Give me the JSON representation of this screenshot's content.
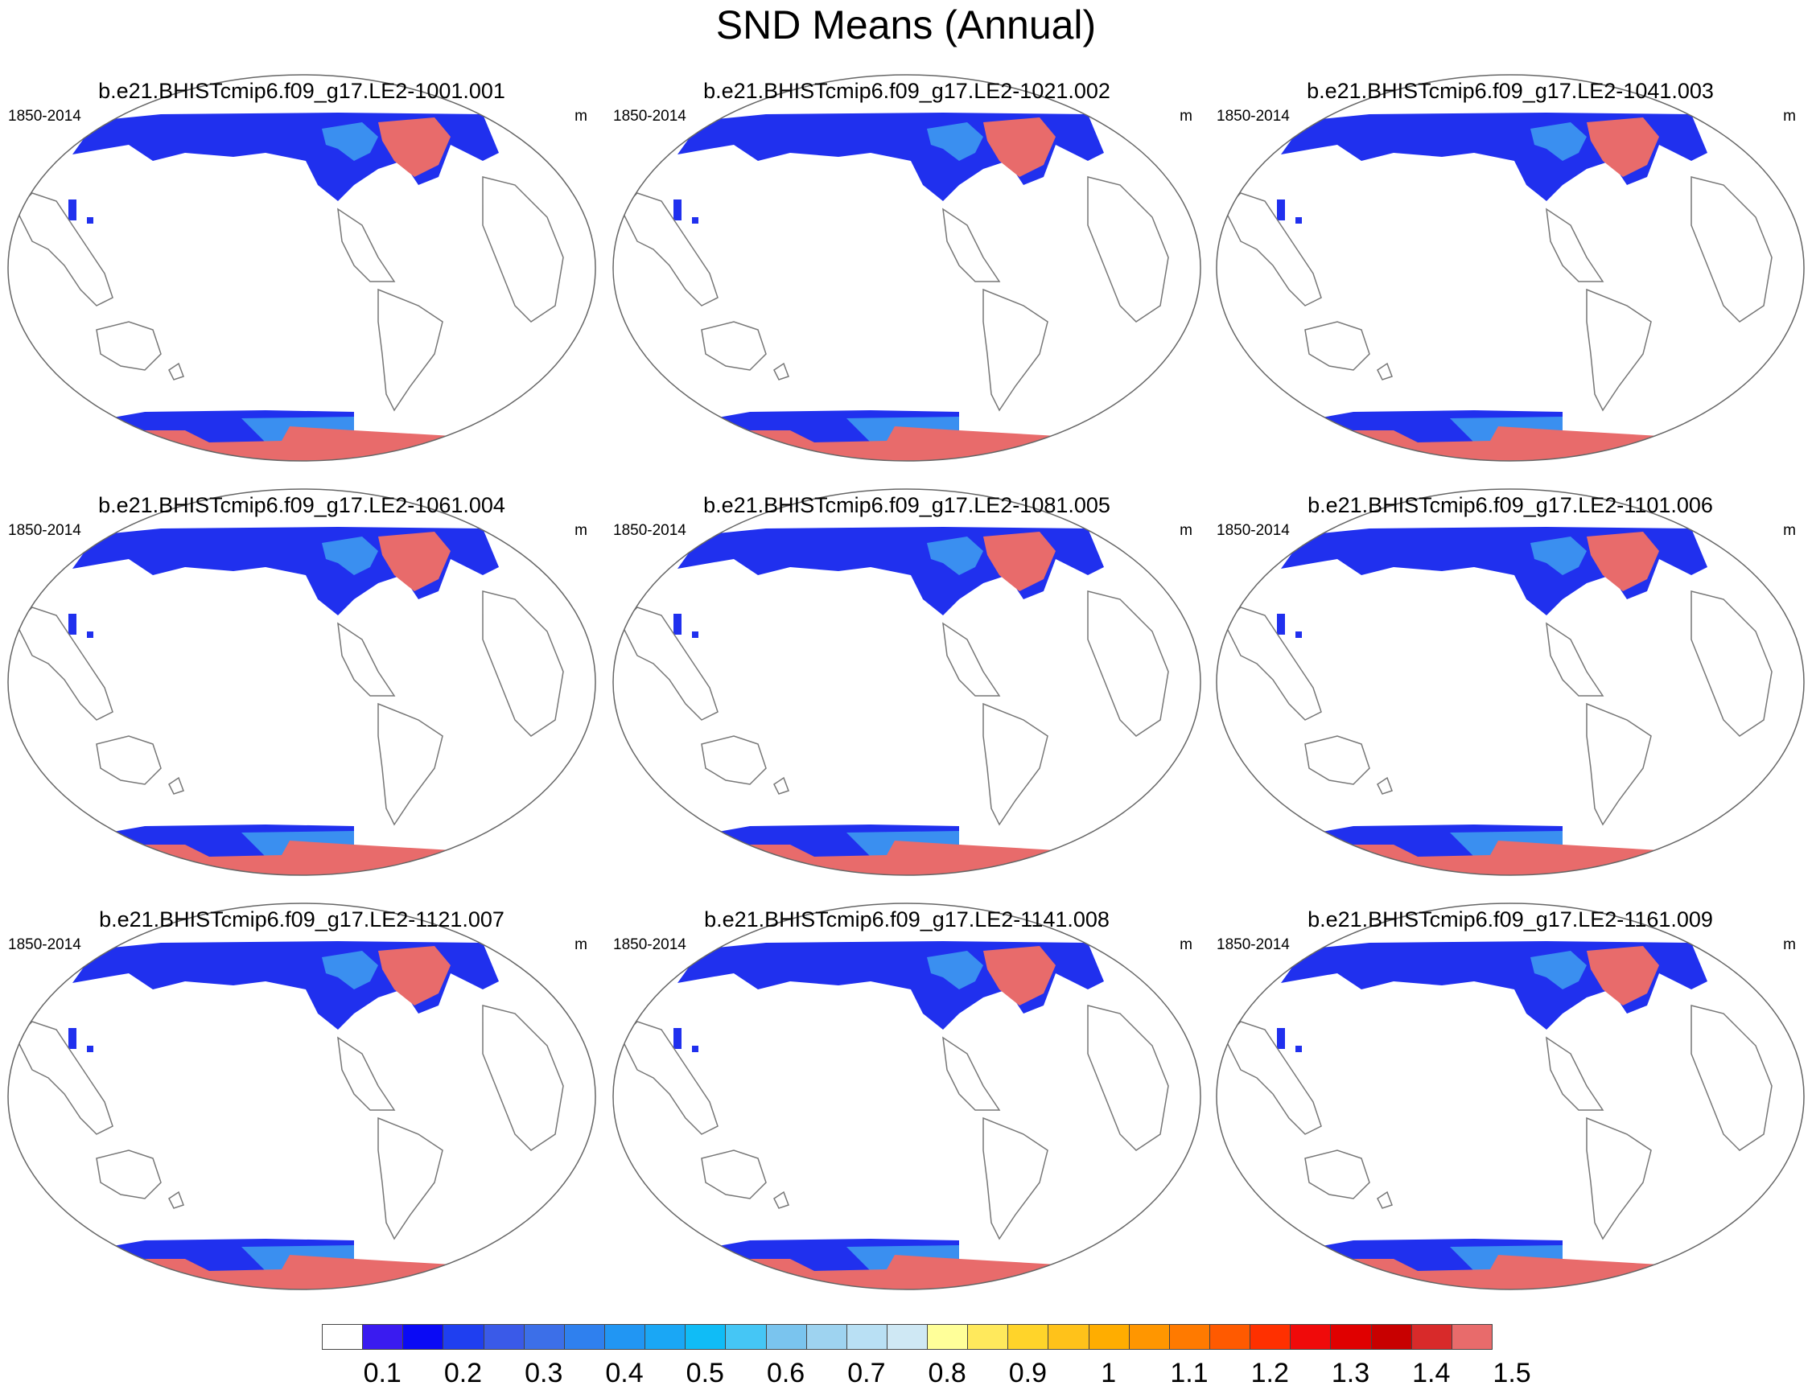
{
  "title": "SND Means (Annual)",
  "panels": [
    {
      "title": "b.e21.BHISTcmip6.f09_g17.LE2-1001.001",
      "period": "1850-2014",
      "units": "m"
    },
    {
      "title": "b.e21.BHISTcmip6.f09_g17.LE2-1021.002",
      "period": "1850-2014",
      "units": "m"
    },
    {
      "title": "b.e21.BHISTcmip6.f09_g17.LE2-1041.003",
      "period": "1850-2014",
      "units": "m"
    },
    {
      "title": "b.e21.BHISTcmip6.f09_g17.LE2-1061.004",
      "period": "1850-2014",
      "units": "m"
    },
    {
      "title": "b.e21.BHISTcmip6.f09_g17.LE2-1081.005",
      "period": "1850-2014",
      "units": "m"
    },
    {
      "title": "b.e21.BHISTcmip6.f09_g17.LE2-1101.006",
      "period": "1850-2014",
      "units": "m"
    },
    {
      "title": "b.e21.BHISTcmip6.f09_g17.LE2-1121.007",
      "period": "1850-2014",
      "units": "m"
    },
    {
      "title": "b.e21.BHISTcmip6.f09_g17.LE2-1141.008",
      "period": "1850-2014",
      "units": "m"
    },
    {
      "title": "b.e21.BHISTcmip6.f09_g17.LE2-1161.009",
      "period": "1850-2014",
      "units": "m"
    }
  ],
  "colorbar": {
    "labels": [
      "0.1",
      "0.2",
      "0.3",
      "0.4",
      "0.5",
      "0.6",
      "0.7",
      "0.8",
      "0.9",
      "1",
      "1.1",
      "1.2",
      "1.3",
      "1.4",
      "1.5"
    ],
    "colors": [
      "#ffffff",
      "#3a1bf0",
      "#0a0af5",
      "#1f3ff0",
      "#3a5ae8",
      "#3c6fe8",
      "#2f80ee",
      "#2196f3",
      "#1aa7f5",
      "#10bcf6",
      "#45c6f5",
      "#7ac4ee",
      "#9ed3f0",
      "#b9e0f4",
      "#cfe8f4",
      "#ffff99",
      "#ffe95c",
      "#ffd42a",
      "#ffc21a",
      "#ffad00",
      "#ff9600",
      "#ff7a00",
      "#ff5a00",
      "#ff3000",
      "#f00a0a",
      "#e00000",
      "#c80000",
      "#d82a2a",
      "#e86b6b"
    ]
  },
  "colors": {
    "deep_snow": "#e86b6b",
    "shallow_snow": "#2030ee",
    "medium_snow": "#3a8ff0",
    "coastline": "#777777"
  }
}
